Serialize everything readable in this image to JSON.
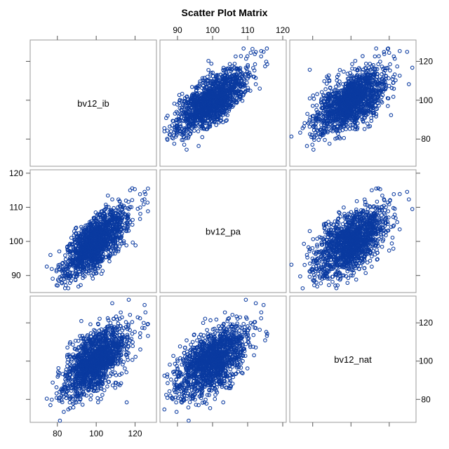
{
  "title": "Scatter Plot Matrix",
  "chart_data": {
    "type": "scatter",
    "matrix": true,
    "variables": [
      "bv12_ib",
      "bv12_pa",
      "bv12_nat"
    ],
    "axis_ranges": {
      "bv12_ib": [
        66,
        131
      ],
      "bv12_pa": [
        85,
        121
      ],
      "bv12_nat": [
        68,
        134
      ]
    },
    "ticks": {
      "bv12_ib": [
        80,
        100,
        120
      ],
      "bv12_pa": [
        90,
        100,
        110,
        120
      ],
      "bv12_nat": [
        80,
        100,
        120
      ]
    },
    "outer_tick_labels": {
      "top": {
        "column": "bv12_pa",
        "values": [
          90,
          100,
          110,
          120
        ]
      },
      "right_row1": {
        "row": "bv12_ib",
        "values": [
          80,
          100,
          120
        ]
      },
      "left_row2": {
        "row": "bv12_pa",
        "values": [
          90,
          100,
          110,
          120
        ]
      },
      "right_row3": {
        "row": "bv12_nat",
        "values": [
          80,
          100,
          120
        ]
      },
      "bottom": {
        "column": "bv12_ib",
        "values": [
          80,
          100,
          120
        ]
      }
    },
    "marker": "open-circle",
    "marker_color": "#0a3aa0",
    "point_count_per_panel": 1500,
    "distribution": {
      "means": {
        "bv12_ib": 100,
        "bv12_pa": 100,
        "bv12_nat": 100
      },
      "sd": {
        "bv12_ib": 8,
        "bv12_pa": 5,
        "bv12_nat": 9
      },
      "correlations": {
        "bv12_ib|bv12_pa": 0.72,
        "bv12_ib|bv12_nat": 0.55,
        "bv12_pa|bv12_nat": 0.55
      }
    },
    "grid": false,
    "legend": "none"
  }
}
